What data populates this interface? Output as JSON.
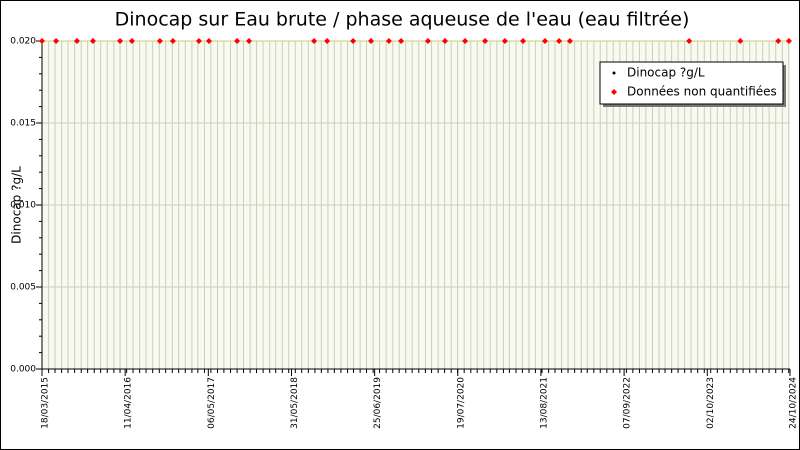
{
  "chart_data": {
    "type": "scatter",
    "title": "Dinocap sur Eau brute / phase aqueuse de l'eau (eau filtrée)",
    "y_label": "Dinocap ?g/L",
    "xlim": [
      "2015-03-18",
      "2024-10-24"
    ],
    "xticks": [
      {
        "value": "2015-03-18",
        "label": "18/03/2015"
      },
      {
        "value": "2016-04-11",
        "label": "11/04/2016"
      },
      {
        "value": "2017-05-06",
        "label": "06/05/2017"
      },
      {
        "value": "2018-05-31",
        "label": "31/05/2018"
      },
      {
        "value": "2019-06-25",
        "label": "25/06/2019"
      },
      {
        "value": "2020-07-19",
        "label": "19/07/2020"
      },
      {
        "value": "2021-08-13",
        "label": "13/08/2021"
      },
      {
        "value": "2022-09-07",
        "label": "07/09/2022"
      },
      {
        "value": "2023-10-02",
        "label": "02/10/2023"
      },
      {
        "value": "2024-10-24",
        "label": "24/10/2024"
      }
    ],
    "ylim": [
      0,
      0.02
    ],
    "yticks": [
      {
        "value": 0,
        "label": "0.000"
      },
      {
        "value": 0.005,
        "label": "0.005"
      },
      {
        "value": 0.01,
        "label": "0.010"
      },
      {
        "value": 0.015,
        "label": "0.015"
      },
      {
        "value": 0.02,
        "label": "0.020"
      }
    ],
    "grid": true,
    "legend": "upper right",
    "series": [
      {
        "name": "Dinocap ?g/L",
        "color": "#000000",
        "x": [],
        "values": []
      },
      {
        "name": "Données non quantifiées",
        "color": "#ff0000",
        "x": [
          "2015-03-18",
          "2015-05-23",
          "2015-08-29",
          "2015-11-12",
          "2016-03-18",
          "2016-05-13",
          "2016-09-21",
          "2016-11-21",
          "2017-03-23",
          "2017-05-09",
          "2017-09-18",
          "2017-11-13",
          "2018-09-14",
          "2018-11-14",
          "2019-03-16",
          "2019-06-08",
          "2019-08-31",
          "2019-10-27",
          "2020-03-01",
          "2020-05-20",
          "2020-08-22",
          "2020-11-24",
          "2021-02-25",
          "2021-05-21",
          "2021-09-01",
          "2021-11-06",
          "2021-12-27",
          "2023-07-09",
          "2024-03-05",
          "2024-08-30",
          "2024-10-19"
        ],
        "values": [
          0.02,
          0.02,
          0.02,
          0.02,
          0.02,
          0.02,
          0.02,
          0.02,
          0.02,
          0.02,
          0.02,
          0.02,
          0.02,
          0.02,
          0.02,
          0.02,
          0.02,
          0.02,
          0.02,
          0.02,
          0.02,
          0.02,
          0.02,
          0.02,
          0.02,
          0.02,
          0.02,
          0.02,
          0.02,
          0.02,
          0.02
        ]
      }
    ]
  }
}
